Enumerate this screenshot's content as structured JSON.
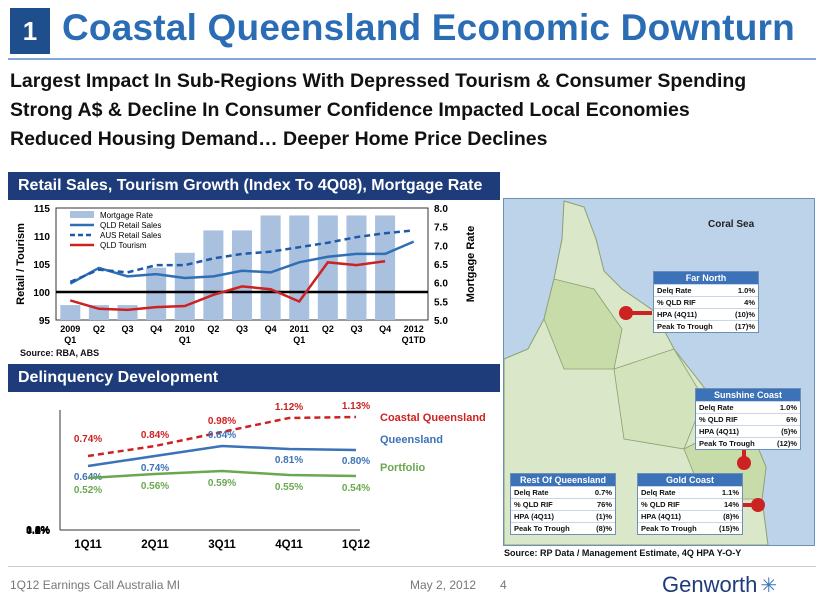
{
  "slide": {
    "number": "1",
    "title": "Coastal Queensland Economic Downturn"
  },
  "bullets": [
    "Largest Impact In Sub-Regions With Depressed Tourism & Consumer Spending",
    "Strong A$ & Decline In Consumer Confidence Impacted Local Economies",
    "Reduced Housing Demand… Deeper Home Price Declines"
  ],
  "panels": {
    "retail_title": "Retail Sales, Tourism Growth (Index To 4Q08), Mortgage Rate",
    "delinquency_title": "Delinquency Development",
    "retail_source": "Source: RBA, ABS",
    "map_source": "Source: RP Data / Management Estimate, 4Q HPA Y-O-Y"
  },
  "chart_data": [
    {
      "type": "bar+line",
      "title": "Retail Sales, Tourism Growth (Index To 4Q08), Mortgage Rate",
      "ylabel": "Retail / Tourism",
      "y2label": "Mortgage Rate",
      "ylim": [
        95,
        115
      ],
      "y2lim": [
        5.0,
        8.0
      ],
      "yticks": [
        "95",
        "100",
        "105",
        "110",
        "115"
      ],
      "y2ticks": [
        "5.0",
        "5.5",
        "6.0",
        "6.5",
        "7.0",
        "7.5",
        "8.0"
      ],
      "categories": [
        [
          "2009",
          "Q1"
        ],
        [
          "Q2",
          ""
        ],
        [
          "Q3",
          ""
        ],
        [
          "Q4",
          ""
        ],
        [
          "2010",
          "Q1"
        ],
        [
          "Q2",
          ""
        ],
        [
          "Q3",
          ""
        ],
        [
          "Q4",
          ""
        ],
        [
          "2011",
          "Q1"
        ],
        [
          "Q2",
          ""
        ],
        [
          "Q3",
          ""
        ],
        [
          "Q4",
          ""
        ],
        [
          "2012",
          "Q1TD"
        ]
      ],
      "bars": {
        "name": "Mortgage Rate",
        "color": "#a9c1df",
        "values": [
          5.4,
          5.4,
          5.4,
          6.4,
          6.8,
          7.4,
          7.4,
          7.8,
          7.8,
          7.8,
          7.8,
          7.8,
          null
        ]
      },
      "series": [
        {
          "name": "QLD Retail Sales",
          "color": "#2f6fb5",
          "dash": "solid",
          "values": [
            101.5,
            104.3,
            102.8,
            103.2,
            102.5,
            102.8,
            103.8,
            103.5,
            105.3,
            106.3,
            106.8,
            106.8,
            109.0
          ]
        },
        {
          "name": "AUS Retail Sales",
          "color": "#1f5aa8",
          "dash": "dashed",
          "values": [
            101.8,
            104.0,
            103.5,
            104.8,
            104.8,
            106.0,
            106.8,
            107.2,
            108.0,
            108.8,
            109.8,
            110.5,
            111.0
          ]
        },
        {
          "name": "QLD Tourism",
          "color": "#cc2222",
          "dash": "solid",
          "values": [
            98.5,
            97.0,
            96.8,
            97.3,
            97.5,
            99.5,
            101.0,
            100.5,
            98.3,
            105.3,
            104.8,
            105.5,
            null
          ]
        }
      ],
      "reference_line": 100
    },
    {
      "type": "line",
      "title": "Delinquency Development",
      "categories": [
        "1Q11",
        "2Q11",
        "3Q11",
        "4Q11",
        "1Q12"
      ],
      "yticks": [
        "0.0%",
        "0.2%",
        "0.4%",
        "0.6%",
        "0.8%",
        "1.0%",
        "1.2%"
      ],
      "ylim": [
        0.0,
        1.2
      ],
      "series": [
        {
          "name": "Coastal Queensland",
          "color": "#cc2222",
          "dash": "dashed",
          "values": [
            0.74,
            0.84,
            0.98,
            1.12,
            1.13
          ],
          "labels": [
            "0.74%",
            "0.84%",
            "0.98%",
            "1.12%",
            "1.13%"
          ]
        },
        {
          "name": "Queensland",
          "color": "#3b72b8",
          "dash": "solid",
          "values": [
            0.64,
            0.74,
            0.84,
            0.81,
            0.8
          ],
          "labels": [
            "0.64%",
            "0.74%",
            "0.84%",
            "0.81%",
            "0.80%"
          ]
        },
        {
          "name": "Portfolio",
          "color": "#6aa84f",
          "dash": "solid",
          "values": [
            0.52,
            0.56,
            0.59,
            0.55,
            0.54
          ],
          "labels": [
            "0.52%",
            "0.56%",
            "0.59%",
            "0.55%",
            "0.54%"
          ]
        }
      ]
    }
  ],
  "map": {
    "sea_label": "Coral Sea",
    "marker_color": "#cc2222",
    "regions": [
      {
        "name": "Far North",
        "rows": [
          [
            "Delq Rate",
            "1.0%"
          ],
          [
            "% QLD RIF",
            "4%"
          ],
          [
            "HPA (4Q11)",
            "(10)%"
          ],
          [
            "Peak To Trough",
            "(17)%"
          ]
        ]
      },
      {
        "name": "Sunshine Coast",
        "rows": [
          [
            "Delq Rate",
            "1.0%"
          ],
          [
            "% QLD RIF",
            "6%"
          ],
          [
            "HPA (4Q11)",
            "(5)%"
          ],
          [
            "Peak To Trough",
            "(12)%"
          ]
        ]
      },
      {
        "name": "Rest Of Queensland",
        "rows": [
          [
            "Delq Rate",
            "0.7%"
          ],
          [
            "% QLD RIF",
            "76%"
          ],
          [
            "HPA (4Q11)",
            "(1)%"
          ],
          [
            "Peak To Trough",
            "(8)%"
          ]
        ]
      },
      {
        "name": "Gold Coast",
        "rows": [
          [
            "Delq Rate",
            "1.1%"
          ],
          [
            "% QLD RIF",
            "14%"
          ],
          [
            "HPA (4Q11)",
            "(8)%"
          ],
          [
            "Peak To Trough",
            "(15)%"
          ]
        ]
      }
    ]
  },
  "footer": {
    "left": "1Q12 Earnings Call Australia MI",
    "date": "May 2, 2012",
    "page": "4",
    "logo": "Genworth",
    "logo_mark": "✳"
  }
}
